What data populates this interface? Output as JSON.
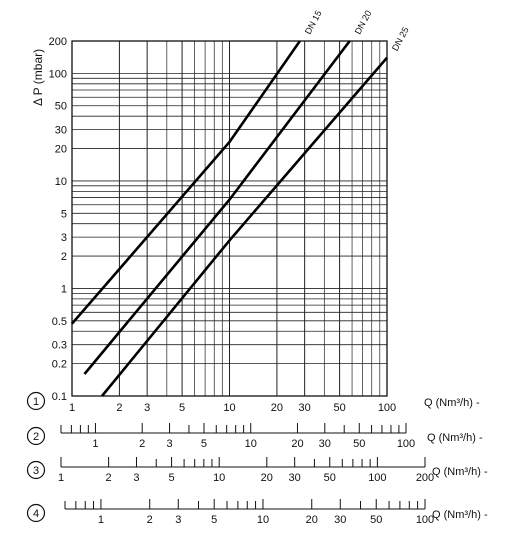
{
  "chart_data": {
    "type": "line",
    "x_scale": "log",
    "y_scale": "log",
    "ylabel": "Δ P (mbar)",
    "xlabel": "Q (Nm³/h) -",
    "xlim": [
      1,
      100
    ],
    "ylim": [
      0.1,
      200
    ],
    "grid": true,
    "y_ticks": [
      "0.1",
      "0.2",
      "0.3",
      "0.5",
      "1",
      "2",
      "3",
      "5",
      "10",
      "20",
      "30",
      "50",
      "100",
      "200"
    ],
    "series": [
      {
        "name": "DN 15",
        "x": [
          1,
          10,
          28
        ],
        "y": [
          0.47,
          23,
          200
        ]
      },
      {
        "name": "DN 20",
        "x": [
          1.2,
          10,
          58
        ],
        "y": [
          0.16,
          6.7,
          200
        ]
      },
      {
        "name": "DN 25",
        "x": [
          1.55,
          10,
          100
        ],
        "y": [
          0.1,
          2.8,
          140
        ]
      }
    ],
    "gas_scales": [
      {
        "number": "1",
        "min": 1,
        "max": 100,
        "labels": [
          "1",
          "2",
          "3",
          "5",
          "10",
          "20",
          "30",
          "50",
          "100"
        ],
        "unit": "Q (Nm³/h) -"
      },
      {
        "number": "2",
        "min": 0.6,
        "max": 100,
        "labels": [
          "1",
          "2",
          "3",
          "5",
          "10",
          "20",
          "30",
          "50",
          "100"
        ],
        "unit": "Q (Nm³/h) -"
      },
      {
        "number": "3",
        "min": 1,
        "max": 200,
        "labels": [
          "1",
          "2",
          "3",
          "5",
          "10",
          "20",
          "30",
          "50",
          "100",
          "200"
        ],
        "unit": "Q (Nm³/h) -"
      },
      {
        "number": "4",
        "min": 0.6,
        "max": 100,
        "labels": [
          "1",
          "2",
          "3",
          "5",
          "10",
          "20",
          "30",
          "50",
          "100"
        ],
        "unit": "Q (Nm³/h) -"
      }
    ]
  }
}
